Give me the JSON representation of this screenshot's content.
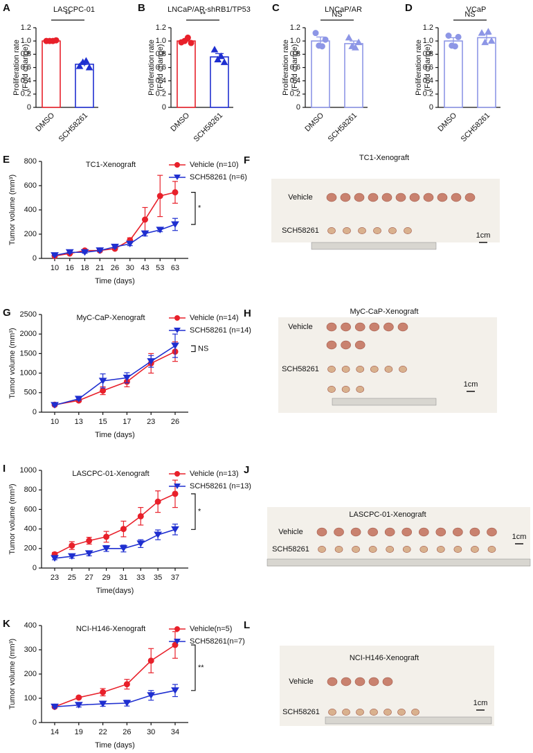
{
  "chart_data": [
    {
      "type": "bar",
      "panel": "A",
      "title": "LASCPC-01",
      "ylabel": [
        "Proliferation rate",
        "(Fold change)"
      ],
      "categories": [
        "DMSO",
        "SCH58261"
      ],
      "values": [
        1.0,
        0.65
      ],
      "errors": [
        0.01,
        0.03
      ],
      "points": [
        [
          1.0,
          1.0,
          1.0,
          1.01
        ],
        [
          0.62,
          0.68,
          0.7,
          0.6
        ]
      ],
      "colors": [
        "#e8202a",
        "#1f2fd0"
      ],
      "fill": "#ffffff",
      "ylim": [
        0,
        1.2
      ],
      "yticks": [
        0,
        0.2,
        0.4,
        0.6,
        0.8,
        {
          "value": 1,
          "label": "1.0"
        },
        1.2
      ],
      "significance": "**"
    },
    {
      "type": "bar",
      "panel": "B",
      "title": "LNCaP/AR-shRB1/TP53",
      "ylabel": [
        "Proliferation rate",
        "(Fold change)"
      ],
      "categories": [
        "DMSO",
        "SCH58261"
      ],
      "values": [
        1.0,
        0.76
      ],
      "errors": [
        0.02,
        0.05
      ],
      "points": [
        [
          0.98,
          1.0,
          1.05,
          0.97
        ],
        [
          0.87,
          0.72,
          0.77,
          0.68
        ]
      ],
      "colors": [
        "#e8202a",
        "#1f2fd0"
      ],
      "fill": "#ffffff",
      "ylim": [
        0,
        1.2
      ],
      "yticks": [
        0,
        0.2,
        0.4,
        0.6,
        0.8,
        {
          "value": 1,
          "label": "1.0"
        },
        1.2
      ],
      "significance": "**"
    },
    {
      "type": "bar",
      "panel": "C",
      "title": "LNCaP/AR",
      "ylabel": [
        "Proliferation rate",
        "(Fold change)"
      ],
      "categories": [
        "DMSO",
        "SCH58261"
      ],
      "values": [
        1.0,
        0.96
      ],
      "errors": [
        0.06,
        0.04
      ],
      "points": [
        [
          1.12,
          0.93,
          0.92,
          1.02
        ],
        [
          1.05,
          0.92,
          0.9,
          0.98
        ]
      ],
      "colors": [
        "#8d96e6",
        "#8d96e6"
      ],
      "fill": "#ffffff",
      "ylim": [
        0,
        1.2
      ],
      "yticks": [
        0,
        0.2,
        0.4,
        0.6,
        0.8,
        {
          "value": 1,
          "label": "1.0"
        },
        1.2
      ],
      "significance": "NS"
    },
    {
      "type": "bar",
      "panel": "D",
      "title": "VCaP",
      "ylabel": [
        "Proliferation rate",
        "(Fold change)"
      ],
      "categories": [
        "DMSO",
        "SCH58261"
      ],
      "values": [
        1.0,
        1.05
      ],
      "errors": [
        0.05,
        0.05
      ],
      "points": [
        [
          1.08,
          0.93,
          0.92,
          1.06
        ],
        [
          1.12,
          0.98,
          1.14,
          1.0
        ]
      ],
      "colors": [
        "#8d96e6",
        "#8d96e6"
      ],
      "fill": "#ffffff",
      "ylim": [
        0,
        1.2
      ],
      "yticks": [
        0,
        0.2,
        0.4,
        0.6,
        0.8,
        {
          "value": 1,
          "label": "1.0"
        },
        1.2
      ],
      "significance": "NS"
    },
    {
      "type": "line",
      "panel": "E",
      "title": "TC1-Xenograft",
      "xlabel": "Time (days)",
      "ylabel": "Tumor volume (mm³)",
      "categories": [
        "10",
        "16",
        "18",
        "21",
        "26",
        "30",
        "43",
        "53",
        "63"
      ],
      "series": [
        {
          "name": "Vehicle (n=10)",
          "color": "#e8202a",
          "values": [
            20,
            40,
            65,
            65,
            80,
            150,
            320,
            515,
            545
          ],
          "errors": [
            5,
            8,
            10,
            8,
            10,
            20,
            100,
            170,
            90
          ]
        },
        {
          "name": "SCH58261 (n=6)",
          "color": "#1f2fd0",
          "values": [
            25,
            50,
            50,
            65,
            95,
            120,
            205,
            235,
            280
          ],
          "errors": [
            5,
            8,
            8,
            8,
            10,
            15,
            20,
            15,
            50
          ]
        }
      ],
      "ylim": [
        0,
        800
      ],
      "yticks": [
        0,
        200,
        400,
        600,
        800
      ],
      "significance": "*"
    },
    {
      "type": "line",
      "panel": "G",
      "title": "MyC-CaP-Xenograft",
      "xlabel": "Time (days)",
      "ylabel": "Tumor volume (mm³)",
      "categories": [
        "10",
        "13",
        "15",
        "17",
        "23",
        "26"
      ],
      "series": [
        {
          "name": "Vehicle (n=14)",
          "color": "#e8202a",
          "values": [
            190,
            300,
            550,
            780,
            1250,
            1550
          ],
          "errors": [
            20,
            30,
            100,
            130,
            250,
            250
          ]
        },
        {
          "name": "SCH58261 (n=14)",
          "color": "#1f2fd0",
          "values": [
            180,
            340,
            800,
            880,
            1300,
            1700
          ],
          "errors": [
            20,
            30,
            180,
            130,
            150,
            300
          ]
        }
      ],
      "ylim": [
        0,
        2500
      ],
      "yticks": [
        0,
        500,
        1000,
        1500,
        2000,
        2500
      ],
      "significance": "NS"
    },
    {
      "type": "line",
      "panel": "I",
      "title": "LASCPC-01-Xenograft",
      "xlabel": "Time(days)",
      "ylabel": "Tumor volume (mm³)",
      "categories": [
        "23",
        "25",
        "27",
        "29",
        "31",
        "33",
        "35",
        "37"
      ],
      "series": [
        {
          "name": "Vehicle (n=13)",
          "color": "#e8202a",
          "values": [
            140,
            230,
            280,
            320,
            400,
            530,
            680,
            760
          ],
          "errors": [
            20,
            40,
            35,
            55,
            80,
            90,
            110,
            140
          ]
        },
        {
          "name": "SCH58261 (n=13)",
          "color": "#1f2fd0",
          "values": [
            100,
            120,
            150,
            200,
            200,
            250,
            340,
            395
          ],
          "errors": [
            15,
            20,
            25,
            30,
            35,
            40,
            50,
            55
          ]
        }
      ],
      "ylim": [
        0,
        1000
      ],
      "yticks": [
        0,
        200,
        400,
        600,
        800,
        1000
      ],
      "significance": "*"
    },
    {
      "type": "line",
      "panel": "K",
      "title": "NCI-H146-Xenograft",
      "xlabel": "Time (days)",
      "ylabel": "Tumor volume (mm³)",
      "categories": [
        "14",
        "19",
        "22",
        "26",
        "30",
        "34"
      ],
      "series": [
        {
          "name": "Vehicle(n=5)",
          "color": "#e8202a",
          "values": [
            65,
            103,
            125,
            158,
            255,
            320
          ],
          "errors": [
            5,
            5,
            15,
            20,
            50,
            55
          ]
        },
        {
          "name": "SCH58261(n=7)",
          "color": "#1f2fd0",
          "values": [
            65,
            72,
            77,
            80,
            112,
            132
          ],
          "errors": [
            5,
            8,
            10,
            12,
            20,
            25
          ]
        }
      ],
      "ylim": [
        0,
        400
      ],
      "yticks": [
        0,
        100,
        200,
        300,
        400
      ],
      "significance": "**"
    }
  ],
  "photos": [
    {
      "panel": "F",
      "title": "TC1-Xenograft",
      "labels": [
        "Vehicle",
        "SCH58261"
      ],
      "scale": "1cm"
    },
    {
      "panel": "H",
      "title": "MyC-CaP-Xenograft",
      "labels": [
        "Vehicle",
        "SCH58261"
      ],
      "scale": "1cm"
    },
    {
      "panel": "J",
      "title": "LASCPC-01-Xenograft",
      "labels": [
        "Vehicle",
        "SCH58261"
      ],
      "scale": "1cm"
    },
    {
      "panel": "L",
      "title": "NCI-H146-Xenograft",
      "labels": [
        "Vehicle",
        "SCH58261"
      ],
      "scale": "1cm"
    }
  ]
}
